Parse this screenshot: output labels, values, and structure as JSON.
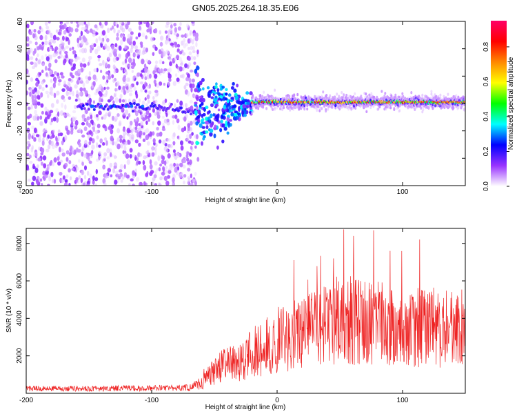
{
  "title": "GN05.2025.264.18.35.E06",
  "chart_data": [
    {
      "type": "heatmap",
      "name": "spectrogram",
      "xlabel": "Height of straight line (km)",
      "ylabel": "Frequency (Hz)",
      "xlim": [
        -200,
        150
      ],
      "ylim": [
        -60,
        60
      ],
      "xticks": [
        -200,
        -100,
        0,
        100
      ],
      "yticks": [
        -60,
        -40,
        -20,
        0,
        20,
        40,
        60
      ],
      "colorbar": {
        "label": "Normalized spectral amplitude",
        "range": [
          0.0,
          0.95
        ],
        "ticks": [
          0.0,
          0.2,
          0.4,
          0.6,
          0.8
        ],
        "tick_labels": [
          "0.0",
          "0.2",
          "0.4",
          "0.6",
          "0.8"
        ],
        "colormap": [
          "#ffffff",
          "#9933ff",
          "#0000ff",
          "#00ffff",
          "#00ff00",
          "#ffff00",
          "#ff8800",
          "#ff0000",
          "#ff0066"
        ]
      },
      "features": {
        "noise_region_x": [
          -200,
          -63
        ],
        "carrier_frequency_hz": 0,
        "carrier_offset_at_left_hz": -2,
        "carrier_offset_at_-55_hz": -8,
        "transition_x": [
          -65,
          -20
        ],
        "strong_signal_x": [
          -20,
          150
        ]
      }
    },
    {
      "type": "line",
      "name": "snr",
      "xlabel": "Height of straight line (km)",
      "ylabel": "SNR (10 * v/v)",
      "xlim": [
        -200,
        150
      ],
      "ylim": [
        0,
        8800
      ],
      "xticks": [
        -200,
        -100,
        0,
        100
      ],
      "yticks": [
        2000,
        4000,
        6000,
        8000
      ],
      "color": "#ee2222",
      "series": [
        {
          "name": "SNR",
          "x": [
            -200,
            -150,
            -100,
            -70,
            -60,
            -50,
            -40,
            -30,
            -20,
            -10,
            0,
            10,
            20,
            30,
            40,
            50,
            60,
            70,
            80,
            90,
            100,
            110,
            120,
            130,
            140,
            150
          ],
          "values": [
            250,
            250,
            280,
            300,
            600,
            1300,
            1700,
            1800,
            2300,
            2700,
            3000,
            3200,
            3500,
            3700,
            3900,
            4300,
            4200,
            4100,
            4200,
            3900,
            3700,
            3800,
            3900,
            3700,
            3600,
            3800
          ],
          "peaks": [
            {
              "x": 53,
              "y": 8750
            },
            {
              "x": 61,
              "y": 8400
            },
            {
              "x": 77,
              "y": 8700
            },
            {
              "x": 45,
              "y": 7200
            },
            {
              "x": 90,
              "y": 7600
            }
          ]
        }
      ]
    }
  ]
}
